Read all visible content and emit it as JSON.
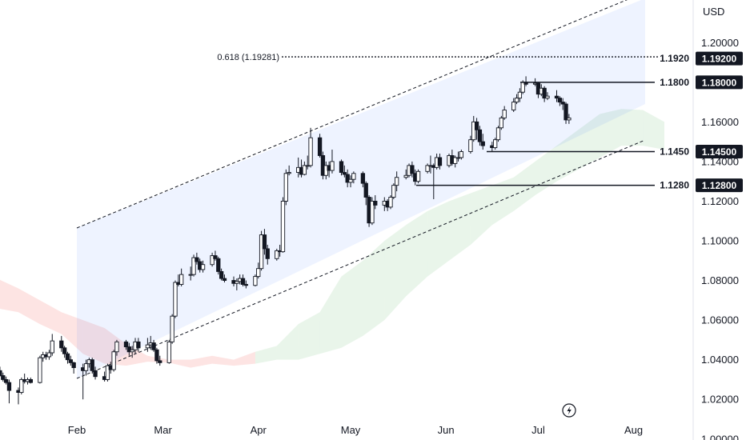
{
  "currency": "USD",
  "chart_data": {
    "type": "candlestick",
    "x_labels": [
      "Feb",
      "Mar",
      "Apr",
      "May",
      "Jun",
      "Jul",
      "Aug"
    ],
    "y_ticks": [
      "1.00000",
      "1.02000",
      "1.04000",
      "1.06000",
      "1.08000",
      "1.10000",
      "1.12000",
      "1.14000",
      "1.16000",
      "1.18000",
      "1.20000"
    ],
    "ylim": [
      0.9995,
      1.2215
    ],
    "fib_label": "0.618 (1.19281)",
    "fib_value": 1.19281,
    "levels": [
      {
        "label": "1.1920",
        "badge": "1.19200",
        "value": 1.192
      },
      {
        "label": "1.1800",
        "badge": "1.18000",
        "value": 1.18
      },
      {
        "label": "1.1450",
        "badge": "1.14500",
        "value": 1.145
      },
      {
        "label": "1.1280",
        "badge": "1.12800",
        "value": 1.128
      }
    ],
    "candle_dates": [
      "2025-01-07",
      "2025-01-08",
      "2025-01-09",
      "2025-01-10",
      "2025-01-13",
      "2025-01-14",
      "2025-01-15",
      "2025-01-16",
      "2025-01-17",
      "2025-01-20",
      "2025-01-21",
      "2025-01-22",
      "2025-01-23",
      "2025-01-24",
      "2025-01-27",
      "2025-01-28",
      "2025-01-29",
      "2025-01-30",
      "2025-01-31",
      "2025-02-03",
      "2025-02-04",
      "2025-02-05",
      "2025-02-06",
      "2025-02-07",
      "2025-02-10",
      "2025-02-11",
      "2025-02-12",
      "2025-02-13",
      "2025-02-14",
      "2025-02-17",
      "2025-02-18",
      "2025-02-19",
      "2025-02-20",
      "2025-02-21",
      "2025-02-24",
      "2025-02-25",
      "2025-02-26",
      "2025-02-27",
      "2025-02-28",
      "2025-03-03",
      "2025-03-04",
      "2025-03-05",
      "2025-03-06",
      "2025-03-07",
      "2025-03-10",
      "2025-03-11",
      "2025-03-12",
      "2025-03-13",
      "2025-03-14",
      "2025-03-17",
      "2025-03-18",
      "2025-03-19",
      "2025-03-20",
      "2025-03-21",
      "2025-03-24",
      "2025-03-25",
      "2025-03-26",
      "2025-03-27",
      "2025-03-28",
      "2025-03-31",
      "2025-04-01",
      "2025-04-02",
      "2025-04-03",
      "2025-04-04",
      "2025-04-07",
      "2025-04-08",
      "2025-04-09",
      "2025-04-10",
      "2025-04-11",
      "2025-04-14",
      "2025-04-15",
      "2025-04-16",
      "2025-04-17",
      "2025-04-18",
      "2025-04-21",
      "2025-04-22",
      "2025-04-23",
      "2025-04-24",
      "2025-04-25",
      "2025-04-28",
      "2025-04-29",
      "2025-04-30",
      "2025-05-01",
      "2025-05-02",
      "2025-05-05",
      "2025-05-06",
      "2025-05-07",
      "2025-05-08",
      "2025-05-09",
      "2025-05-12",
      "2025-05-13",
      "2025-05-14",
      "2025-05-15",
      "2025-05-16",
      "2025-05-19",
      "2025-05-20",
      "2025-05-21",
      "2025-05-22",
      "2025-05-23",
      "2025-05-26",
      "2025-05-27",
      "2025-05-28",
      "2025-05-29",
      "2025-05-30",
      "2025-06-02",
      "2025-06-03",
      "2025-06-04",
      "2025-06-05",
      "2025-06-06",
      "2025-06-09",
      "2025-06-10",
      "2025-06-11",
      "2025-06-12",
      "2025-06-13",
      "2025-06-16",
      "2025-06-17",
      "2025-06-18",
      "2025-06-19",
      "2025-06-20",
      "2025-06-23",
      "2025-06-24",
      "2025-06-25",
      "2025-06-26",
      "2025-06-27",
      "2025-06-30",
      "2025-07-01",
      "2025-07-02",
      "2025-07-03",
      "2025-07-04",
      "2025-07-07",
      "2025-07-08",
      "2025-07-09",
      "2025-07-10",
      "2025-07-11",
      "2025-07-14",
      "2025-07-15",
      "2025-07-16",
      "2025-07-17"
    ],
    "ohlc": [
      [
        1.0345,
        1.0365,
        1.0315,
        1.032
      ],
      [
        1.032,
        1.0335,
        1.029,
        1.03
      ],
      [
        1.03,
        1.0315,
        1.0275,
        1.0285
      ],
      [
        1.0285,
        1.03,
        1.018,
        1.0245
      ],
      [
        1.0245,
        1.026,
        1.0175,
        1.0235
      ],
      [
        1.0235,
        1.031,
        1.0225,
        1.03
      ],
      [
        1.03,
        1.033,
        1.028,
        1.029
      ],
      [
        1.029,
        1.031,
        1.0275,
        1.03
      ],
      [
        1.03,
        1.031,
        1.028,
        1.0285
      ],
      [
        1.0285,
        1.042,
        1.028,
        1.041
      ],
      [
        1.041,
        1.044,
        1.039,
        1.0425
      ],
      [
        1.0425,
        1.044,
        1.04,
        1.0415
      ],
      [
        1.0415,
        1.045,
        1.04,
        1.0435
      ],
      [
        1.0435,
        1.053,
        1.042,
        1.0495
      ],
      [
        1.0495,
        1.052,
        1.044,
        1.046
      ],
      [
        1.046,
        1.047,
        1.041,
        1.043
      ],
      [
        1.043,
        1.044,
        1.038,
        1.04
      ],
      [
        1.04,
        1.042,
        1.037,
        1.0385
      ],
      [
        1.0385,
        1.039,
        1.033,
        1.036
      ],
      [
        1.036,
        1.038,
        1.02,
        1.0345
      ],
      [
        1.0345,
        1.04,
        1.032,
        1.038
      ],
      [
        1.038,
        1.041,
        1.036,
        1.04
      ],
      [
        1.04,
        1.041,
        1.033,
        1.0345
      ],
      [
        1.0345,
        1.0365,
        1.03,
        1.0315
      ],
      [
        1.0315,
        1.034,
        1.029,
        1.03
      ],
      [
        1.03,
        1.038,
        1.029,
        1.037
      ],
      [
        1.037,
        1.039,
        1.033,
        1.035
      ],
      [
        1.035,
        1.045,
        1.034,
        1.044
      ],
      [
        1.044,
        1.05,
        1.042,
        1.049
      ],
      [
        1.049,
        1.05,
        1.045,
        1.0465
      ],
      [
        1.0465,
        1.0485,
        1.042,
        1.044
      ],
      [
        1.044,
        1.047,
        1.041,
        1.045
      ],
      [
        1.045,
        1.051,
        1.043,
        1.049
      ],
      [
        1.049,
        1.051,
        1.044,
        1.046
      ],
      [
        1.046,
        1.051,
        1.044,
        1.0475
      ],
      [
        1.0475,
        1.052,
        1.045,
        1.0485
      ],
      [
        1.0485,
        1.05,
        1.044,
        1.045
      ],
      [
        1.045,
        1.046,
        1.038,
        1.0395
      ],
      [
        1.0395,
        1.042,
        1.037,
        1.0385
      ],
      [
        1.0385,
        1.05,
        1.038,
        1.049
      ],
      [
        1.049,
        1.063,
        1.048,
        1.062
      ],
      [
        1.062,
        1.08,
        1.061,
        1.079
      ],
      [
        1.079,
        1.083,
        1.077,
        1.078
      ],
      [
        1.078,
        1.086,
        1.077,
        1.083
      ],
      [
        1.083,
        1.087,
        1.08,
        1.083
      ],
      [
        1.083,
        1.093,
        1.082,
        1.0915
      ],
      [
        1.0915,
        1.094,
        1.088,
        1.0895
      ],
      [
        1.0895,
        1.091,
        1.084,
        1.0855
      ],
      [
        1.0855,
        1.09,
        1.084,
        1.088
      ],
      [
        1.088,
        1.094,
        1.087,
        1.0925
      ],
      [
        1.0925,
        1.095,
        1.09,
        1.091
      ],
      [
        1.091,
        1.092,
        1.083,
        1.0845
      ],
      [
        1.0845,
        1.086,
        1.08,
        1.081
      ],
      [
        1.081,
        1.083,
        1.079,
        1.08
      ],
      [
        1.08,
        1.082,
        1.077,
        1.0785
      ],
      [
        1.0785,
        1.081,
        1.075,
        1.0795
      ],
      [
        1.0795,
        1.083,
        1.078,
        1.081
      ],
      [
        1.081,
        1.083,
        1.077,
        1.078
      ],
      [
        1.078,
        1.08,
        1.076,
        1.0775
      ],
      [
        1.0775,
        1.083,
        1.077,
        1.082
      ],
      [
        1.082,
        1.089,
        1.081,
        1.086
      ],
      [
        1.086,
        1.105,
        1.085,
        1.103
      ],
      [
        1.103,
        1.106,
        1.093,
        1.096
      ],
      [
        1.096,
        1.098,
        1.088,
        1.091
      ],
      [
        1.091,
        1.096,
        1.09,
        1.095
      ],
      [
        1.095,
        1.098,
        1.092,
        1.0945
      ],
      [
        1.0945,
        1.122,
        1.094,
        1.12
      ],
      [
        1.12,
        1.136,
        1.118,
        1.134
      ],
      [
        1.134,
        1.138,
        1.133,
        1.1345
      ],
      [
        1.1345,
        1.142,
        1.132,
        1.137
      ],
      [
        1.137,
        1.141,
        1.132,
        1.1335
      ],
      [
        1.1335,
        1.14,
        1.133,
        1.138
      ],
      [
        1.138,
        1.143,
        1.136,
        1.138
      ],
      [
        1.138,
        1.157,
        1.137,
        1.152
      ],
      [
        1.152,
        1.154,
        1.142,
        1.143
      ],
      [
        1.143,
        1.145,
        1.131,
        1.133
      ],
      [
        1.133,
        1.14,
        1.131,
        1.138
      ],
      [
        1.138,
        1.14,
        1.132,
        1.1355
      ],
      [
        1.1355,
        1.146,
        1.134,
        1.14
      ],
      [
        1.14,
        1.141,
        1.133,
        1.1345
      ],
      [
        1.1345,
        1.138,
        1.132,
        1.1335
      ],
      [
        1.1335,
        1.136,
        1.127,
        1.1295
      ],
      [
        1.1295,
        1.133,
        1.127,
        1.131
      ],
      [
        1.131,
        1.135,
        1.129,
        1.134
      ],
      [
        1.134,
        1.135,
        1.127,
        1.129
      ],
      [
        1.129,
        1.13,
        1.118,
        1.122
      ],
      [
        1.122,
        1.123,
        1.107,
        1.109
      ],
      [
        1.109,
        1.122,
        1.108,
        1.12
      ],
      [
        1.12,
        1.123,
        1.116,
        1.118
      ],
      [
        1.118,
        1.122,
        1.115,
        1.12
      ],
      [
        1.12,
        1.121,
        1.115,
        1.117
      ],
      [
        1.117,
        1.123,
        1.116,
        1.122
      ],
      [
        1.122,
        1.129,
        1.121,
        1.128
      ],
      [
        1.128,
        1.135,
        1.125,
        1.132
      ],
      [
        1.132,
        1.136,
        1.131,
        1.133
      ],
      [
        1.133,
        1.139,
        1.132,
        1.138
      ],
      [
        1.138,
        1.14,
        1.132,
        1.134
      ],
      [
        1.134,
        1.136,
        1.128,
        1.13
      ],
      [
        1.13,
        1.136,
        1.129,
        1.135
      ],
      [
        1.135,
        1.139,
        1.134,
        1.138
      ],
      [
        1.138,
        1.143,
        1.134,
        1.138
      ],
      [
        1.138,
        1.139,
        1.121,
        1.137
      ],
      [
        1.137,
        1.144,
        1.136,
        1.142
      ],
      [
        1.142,
        1.144,
        1.136,
        1.138
      ],
      [
        1.138,
        1.144,
        1.137,
        1.143
      ],
      [
        1.143,
        1.146,
        1.138,
        1.139
      ],
      [
        1.139,
        1.143,
        1.137,
        1.142
      ],
      [
        1.142,
        1.145,
        1.14,
        1.142
      ],
      [
        1.142,
        1.146,
        1.141,
        1.145
      ],
      [
        1.145,
        1.153,
        1.144,
        1.151
      ],
      [
        1.151,
        1.163,
        1.15,
        1.16
      ],
      [
        1.16,
        1.162,
        1.151,
        1.156
      ],
      [
        1.156,
        1.158,
        1.148,
        1.15
      ],
      [
        1.15,
        1.154,
        1.146,
        1.148
      ],
      [
        1.148,
        1.15,
        1.145,
        1.147
      ],
      [
        1.147,
        1.152,
        1.146,
        1.151
      ],
      [
        1.151,
        1.158,
        1.15,
        1.157
      ],
      [
        1.157,
        1.163,
        1.156,
        1.162
      ],
      [
        1.162,
        1.168,
        1.161,
        1.166
      ],
      [
        1.166,
        1.172,
        1.165,
        1.17
      ],
      [
        1.17,
        1.174,
        1.169,
        1.172
      ],
      [
        1.172,
        1.177,
        1.17,
        1.175
      ],
      [
        1.175,
        1.181,
        1.174,
        1.18
      ],
      [
        1.18,
        1.183,
        1.178,
        1.179
      ],
      [
        1.179,
        1.182,
        1.178,
        1.1795
      ],
      [
        1.1795,
        1.18,
        1.172,
        1.174
      ],
      [
        1.174,
        1.179,
        1.173,
        1.177
      ],
      [
        1.177,
        1.178,
        1.17,
        1.172
      ],
      [
        1.172,
        1.175,
        1.171,
        1.173
      ],
      [
        1.173,
        1.176,
        1.17,
        1.172
      ],
      [
        1.172,
        1.173,
        1.168,
        1.17
      ],
      [
        1.17,
        1.172,
        1.166,
        1.169
      ],
      [
        1.169,
        1.17,
        1.159,
        1.161
      ],
      [
        1.161,
        1.164,
        1.159,
        1.162
      ]
    ],
    "cloud": [
      [
        "2024-12-30",
        1.081,
        1.069
      ],
      [
        "2025-01-06",
        1.081,
        1.066
      ],
      [
        "2025-01-13",
        1.076,
        1.064
      ],
      [
        "2025-01-20",
        1.07,
        1.058
      ],
      [
        "2025-01-27",
        1.064,
        1.053
      ],
      [
        "2025-02-03",
        1.06,
        1.043
      ],
      [
        "2025-02-10",
        1.056,
        1.038
      ],
      [
        "2025-02-17",
        1.048,
        1.037
      ],
      [
        "2025-02-24",
        1.042,
        1.039
      ],
      [
        "2025-03-03",
        1.04,
        1.0385
      ],
      [
        "2025-03-10",
        1.04,
        1.036
      ],
      [
        "2025-03-17",
        1.042,
        1.038
      ],
      [
        "2025-03-24",
        1.04,
        1.037
      ],
      [
        "2025-03-31",
        1.044,
        1.038
      ],
      [
        "2025-04-07",
        1.047,
        1.04
      ],
      [
        "2025-04-14",
        1.058,
        1.04
      ],
      [
        "2025-04-21",
        1.064,
        1.043
      ],
      [
        "2025-04-28",
        1.082,
        1.046
      ],
      [
        "2025-05-05",
        1.09,
        1.052
      ],
      [
        "2025-05-12",
        1.1,
        1.06
      ],
      [
        "2025-05-19",
        1.108,
        1.072
      ],
      [
        "2025-05-26",
        1.115,
        1.082
      ],
      [
        "2025-06-02",
        1.12,
        1.09
      ],
      [
        "2025-06-09",
        1.124,
        1.098
      ],
      [
        "2025-06-16",
        1.128,
        1.108
      ],
      [
        "2025-06-23",
        1.132,
        1.115
      ],
      [
        "2025-06-30",
        1.14,
        1.123
      ],
      [
        "2025-07-07",
        1.148,
        1.13
      ],
      [
        "2025-07-14",
        1.156,
        1.136
      ],
      [
        "2025-07-21",
        1.164,
        1.142
      ],
      [
        "2025-07-28",
        1.1665,
        1.148
      ],
      [
        "2025-08-04",
        1.166,
        1.148
      ],
      [
        "2025-08-11",
        1.16,
        1.146
      ]
    ]
  }
}
